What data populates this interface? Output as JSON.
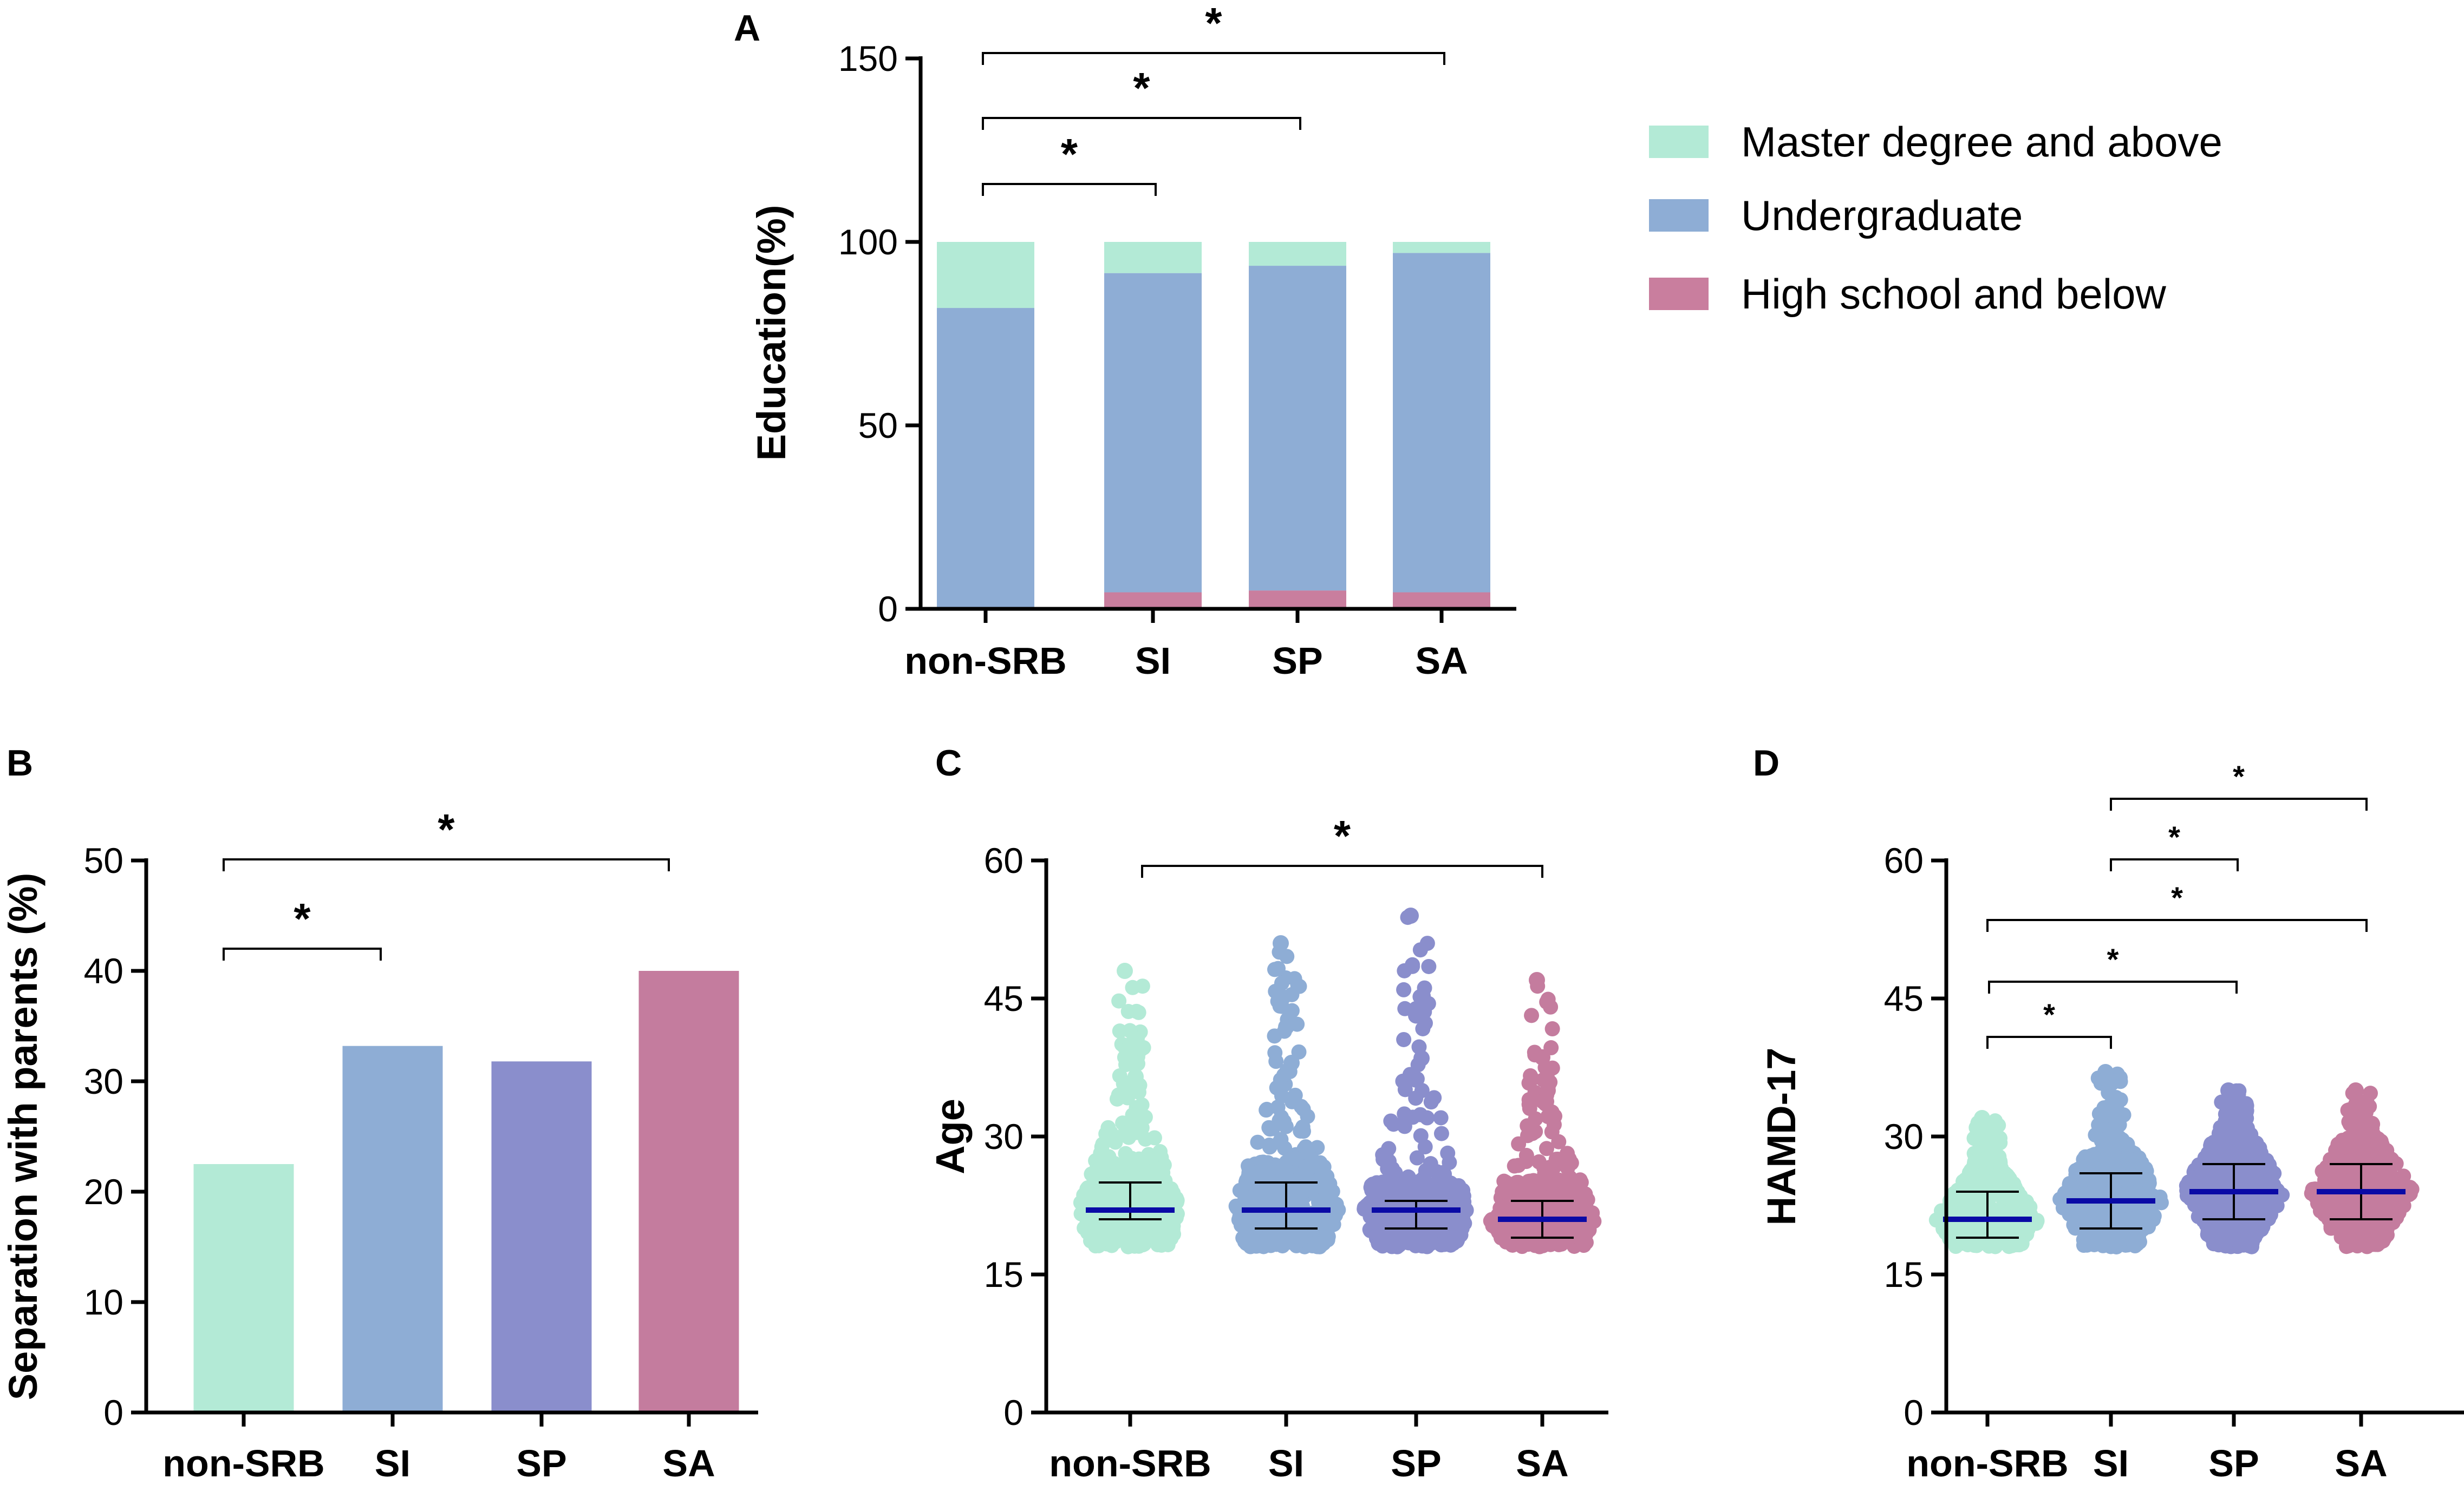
{
  "colors": {
    "master": "#b3ead6",
    "undergrad": "#8eadd5",
    "highschool": "#c97e9e",
    "non_srb": "#b3ead6",
    "si": "#8eadd5",
    "sp": "#8a8ecc",
    "sa": "#c47c9e",
    "mean_line": "#0a0aa6"
  },
  "chart_data": [
    {
      "panel": "A",
      "type": "bar",
      "stacked": true,
      "categories": [
        "non-SRB",
        "SI",
        "SP",
        "SA"
      ],
      "series": [
        {
          "name": "High school and below",
          "values": [
            0.5,
            4.5,
            5,
            4.5
          ]
        },
        {
          "name": "Undergraduate",
          "values": [
            81.5,
            87,
            88.5,
            92.5
          ]
        },
        {
          "name": "Master degree and above",
          "values": [
            18,
            8.5,
            6.5,
            3
          ]
        }
      ],
      "ylabel": "Education(%)",
      "ylim": [
        0,
        150
      ],
      "yticks": [
        "0",
        "50",
        "100",
        "150"
      ],
      "legend": [
        "Master degree and above",
        "Undergraduate",
        "High school and below"
      ],
      "legend_position": "right",
      "significance": [
        {
          "from": "non-SRB",
          "to": "SI",
          "label": "*"
        },
        {
          "from": "non-SRB",
          "to": "SP",
          "label": "*"
        },
        {
          "from": "non-SRB",
          "to": "SA",
          "label": "*"
        }
      ]
    },
    {
      "panel": "B",
      "type": "bar",
      "categories": [
        "non-SRB",
        "SI",
        "SP",
        "SA"
      ],
      "values": [
        22.5,
        33.2,
        31.8,
        40
      ],
      "ylabel": "Separation with parents (%)",
      "ylim": [
        0,
        50
      ],
      "yticks": [
        "0",
        "10",
        "20",
        "30",
        "40",
        "50"
      ],
      "significance": [
        {
          "from": "non-SRB",
          "to": "SI",
          "label": "*"
        },
        {
          "from": "non-SRB",
          "to": "SA",
          "label": "*"
        }
      ]
    },
    {
      "panel": "C",
      "type": "scatter",
      "categories": [
        "non-SRB",
        "SI",
        "SP",
        "SA"
      ],
      "groups": [
        {
          "name": "non-SRB",
          "median": 22,
          "q1": 21,
          "q3": 25,
          "min": 18,
          "max": 48
        },
        {
          "name": "SI",
          "median": 22,
          "q1": 20,
          "q3": 25,
          "min": 18,
          "max": 51
        },
        {
          "name": "SP",
          "median": 22,
          "q1": 20,
          "q3": 23,
          "min": 18,
          "max": 54
        },
        {
          "name": "SA",
          "median": 21,
          "q1": 19,
          "q3": 23,
          "min": 18,
          "max": 47
        }
      ],
      "ylabel": "Age",
      "ylim": [
        0,
        60
      ],
      "yticks": [
        "0",
        "15",
        "30",
        "45",
        "60"
      ],
      "significance": [
        {
          "from": "non-SRB",
          "to": "SA",
          "label": "*"
        }
      ]
    },
    {
      "panel": "D",
      "type": "scatter",
      "categories": [
        "non-SRB",
        "SI",
        "SP",
        "SA"
      ],
      "groups": [
        {
          "name": "non-SRB",
          "median": 21,
          "q1": 19,
          "q3": 24,
          "min": 18,
          "max": 32
        },
        {
          "name": "SI",
          "median": 23,
          "q1": 20,
          "q3": 26,
          "min": 18,
          "max": 37
        },
        {
          "name": "SP",
          "median": 24,
          "q1": 21,
          "q3": 27,
          "min": 18,
          "max": 35
        },
        {
          "name": "SA",
          "median": 24,
          "q1": 21,
          "q3": 27,
          "min": 18,
          "max": 35
        }
      ],
      "ylabel": "HAMD-17",
      "ylim": [
        0,
        60
      ],
      "yticks": [
        "0",
        "15",
        "30",
        "45",
        "60"
      ],
      "significance": [
        {
          "from": "SI",
          "to": "SA",
          "label": "*"
        },
        {
          "from": "SI",
          "to": "SP",
          "label": "*"
        },
        {
          "from": "non-SRB",
          "to": "SA",
          "label": "*"
        },
        {
          "from": "non-SRB",
          "to": "SP",
          "label": "*"
        },
        {
          "from": "non-SRB",
          "to": "SI",
          "label": "*"
        }
      ]
    }
  ]
}
